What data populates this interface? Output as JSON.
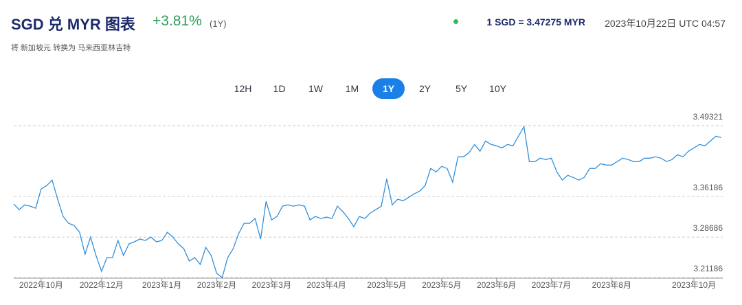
{
  "header": {
    "title": "SGD 兑 MYR 图表",
    "change": "+3.81%",
    "period": "(1Y)",
    "subtitle": "将 新加坡元 转换为 马来西亚林吉特",
    "rate": "1 SGD = 3.47275 MYR",
    "timestamp": "2023年10月22日 UTC 04:57"
  },
  "ranges": {
    "options": [
      "12H",
      "1D",
      "1W",
      "1M",
      "1Y",
      "2Y",
      "5Y",
      "10Y"
    ],
    "active": "1Y"
  },
  "chart_data": {
    "type": "line",
    "color": "#2f8fdc",
    "values": [
      3.3479,
      3.3377,
      3.3466,
      3.3441,
      3.3403,
      3.3759,
      3.3822,
      3.3924,
      3.3568,
      3.325,
      3.3123,
      3.3085,
      3.2958,
      3.2551,
      3.2869,
      3.2526,
      3.2233,
      3.2488,
      3.2488,
      3.2805,
      3.2526,
      3.2742,
      3.278,
      3.2831,
      3.2805,
      3.2869,
      3.278,
      3.2805,
      3.2958,
      3.2869,
      3.2742,
      3.2653,
      3.2424,
      3.2488,
      3.2361,
      3.2678,
      3.2526,
      3.2195,
      3.2119,
      3.2488,
      3.2653,
      3.2933,
      3.3123,
      3.3123,
      3.3212,
      3.2831,
      3.353,
      3.3187,
      3.325,
      3.3441,
      3.3466,
      3.3441,
      3.3466,
      3.3441,
      3.3187,
      3.325,
      3.3212,
      3.3237,
      3.3212,
      3.3441,
      3.3339,
      3.3212,
      3.3059,
      3.325,
      3.3212,
      3.3314,
      3.3377,
      3.3441,
      3.3949,
      3.3466,
      3.3568,
      3.3542,
      3.3606,
      3.3669,
      3.372,
      3.3822,
      3.414,
      3.4076,
      3.4178,
      3.414,
      3.3885,
      3.4356,
      3.4356,
      3.4432,
      3.4585,
      3.4458,
      3.4648,
      3.4585,
      3.4559,
      3.4521,
      3.4585,
      3.4559,
      3.4737,
      3.4915,
      3.4267,
      3.4267,
      3.433,
      3.4305,
      3.433,
      3.4076,
      3.3924,
      3.4013,
      3.3974,
      3.3924,
      3.3974,
      3.414,
      3.414,
      3.4229,
      3.4203,
      3.4203,
      3.4267,
      3.433,
      3.4305,
      3.4267,
      3.4267,
      3.433,
      3.433,
      3.4356,
      3.433,
      3.4267,
      3.4305,
      3.4394,
      3.4356,
      3.4458,
      3.4521,
      3.4585,
      3.4559,
      3.4648,
      3.4737,
      3.4712
    ],
    "xlim": [
      0,
      129
    ],
    "xticks": [
      {
        "value": 5,
        "label": "2022年10月"
      },
      {
        "value": 16,
        "label": "2022年12月"
      },
      {
        "value": 27,
        "label": "2023年1月"
      },
      {
        "value": 37,
        "label": "2023年2月"
      },
      {
        "value": 47,
        "label": "2023年3月"
      },
      {
        "value": 57,
        "label": "2023年4月"
      },
      {
        "value": 68,
        "label": "2023年5月"
      },
      {
        "value": 78,
        "label": "2023年5月"
      },
      {
        "value": 88,
        "label": "2023年6月"
      },
      {
        "value": 98,
        "label": "2023年7月"
      },
      {
        "value": 109,
        "label": "2023年8月"
      },
      {
        "value": 124,
        "label": "2023年10月"
      }
    ],
    "ylim": [
      3.21186,
      3.49321
    ],
    "yticks": [
      3.21186,
      3.28686,
      3.36186,
      3.49321
    ],
    "grid": true
  }
}
